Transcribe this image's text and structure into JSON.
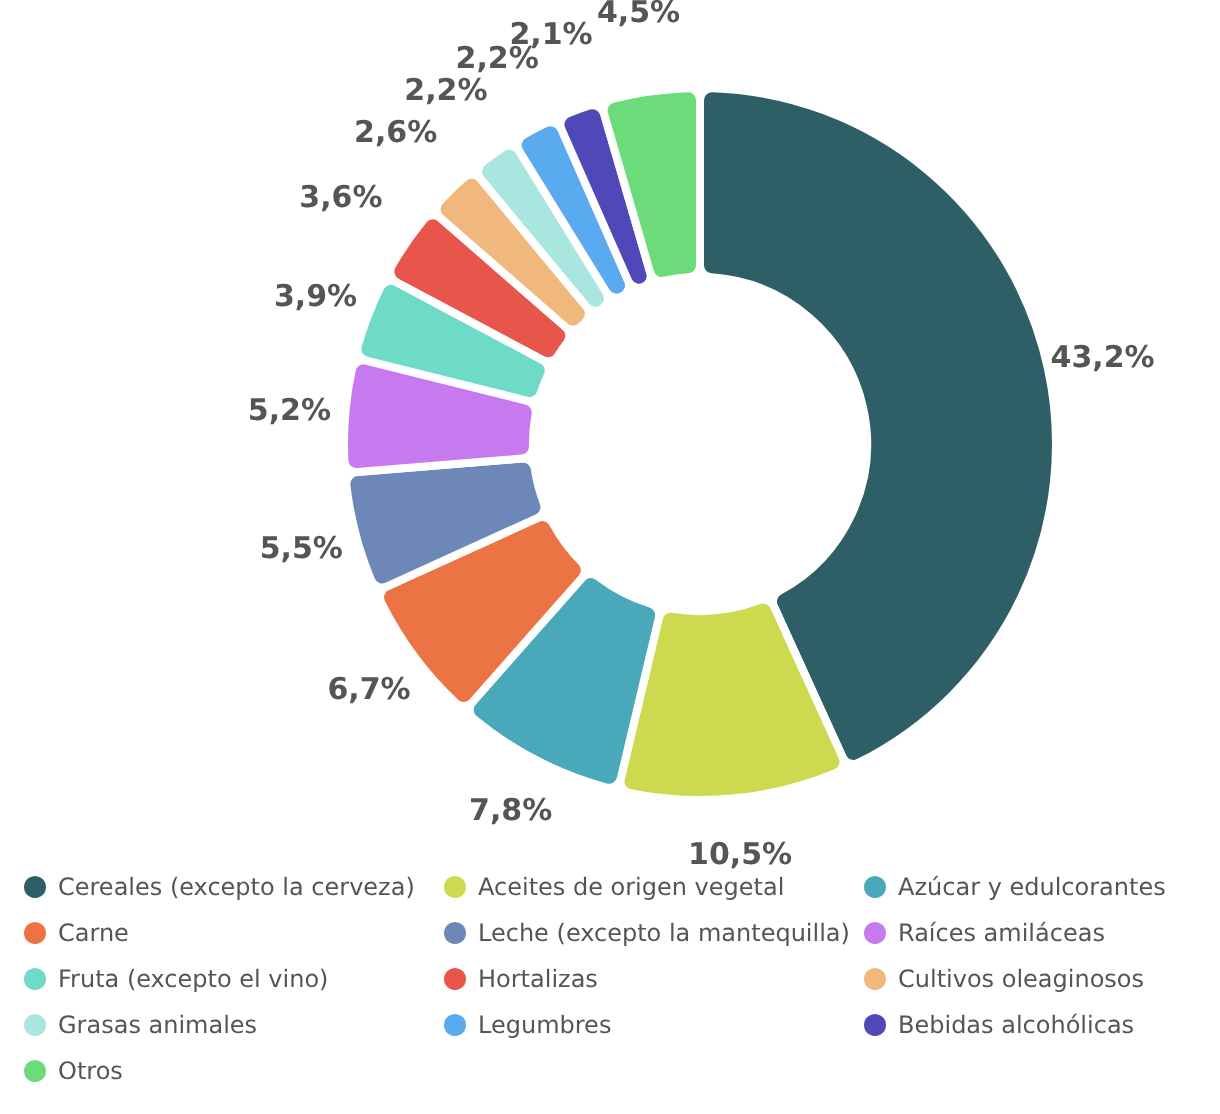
{
  "chart_data": {
    "type": "donut",
    "categories": [
      "Cereales (excepto la cerveza)",
      "Aceites de origen vegetal",
      "Azúcar y edulcorantes",
      "Carne",
      "Leche (excepto la mantequilla)",
      "Raíces amiláceas",
      "Fruta (excepto el vino)",
      "Hortalizas",
      "Cultivos oleaginosos",
      "Grasas animales",
      "Legumbres",
      "Bebidas alcohólicas",
      "Otros"
    ],
    "values": [
      43.2,
      10.5,
      7.8,
      6.7,
      5.5,
      5.2,
      3.9,
      3.6,
      2.6,
      2.2,
      2.2,
      2.1,
      4.5
    ],
    "value_labels": [
      "43,2%",
      "10,5%",
      "7,8%",
      "6,7%",
      "5,5%",
      "5,2%",
      "3,9%",
      "3,6%",
      "2,6%",
      "2,2%",
      "2,2%",
      "2,1%",
      "4,5%"
    ],
    "colors": [
      "#2e5e66",
      "#cdd94e",
      "#4aa8bb",
      "#ec7444",
      "#6c87b8",
      "#c77af0",
      "#6ddbc8",
      "#e8554a",
      "#f0b87c",
      "#a9e6e0",
      "#5aaaf0",
      "#5048b8",
      "#6cdc7a"
    ],
    "legend": "bottom"
  }
}
